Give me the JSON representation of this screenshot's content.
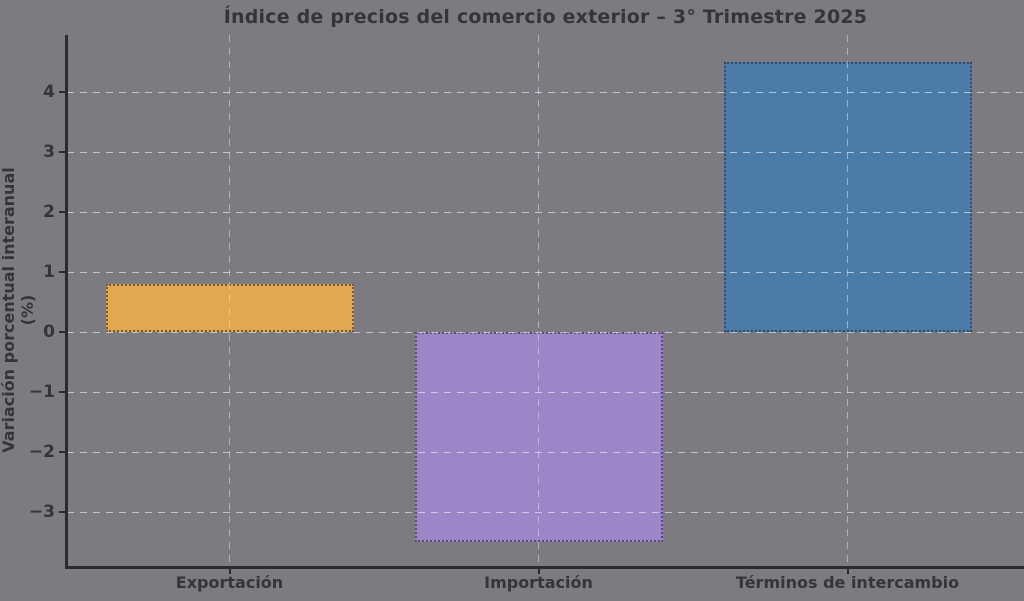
{
  "chart_data": {
    "type": "bar",
    "title": "Índice de precios del comercio exterior – 3° Trimestre 2025",
    "ylabel": "Variación porcentual interanual (%)",
    "xlabel": "",
    "categories": [
      "Exportación",
      "Importación",
      "Términos de intercambio"
    ],
    "values": [
      0.8,
      -3.5,
      4.5
    ],
    "bar_colors": [
      "#E2A74F",
      "#9D85C8",
      "#4B7CA8"
    ],
    "bar_edge_color": "rgba(42,42,50,0.6)",
    "ylim": [
      -3.9,
      4.95
    ],
    "yticks": [
      -3,
      -2,
      -1,
      0,
      1,
      2,
      3,
      4
    ],
    "grid": true,
    "grid_style": "dashed",
    "grid_color": "rgba(228,233,243,0.9)",
    "legend": "none",
    "background_color": "#7C7B81",
    "text_color": "#35343A",
    "spine_color": "#2B2A30"
  }
}
